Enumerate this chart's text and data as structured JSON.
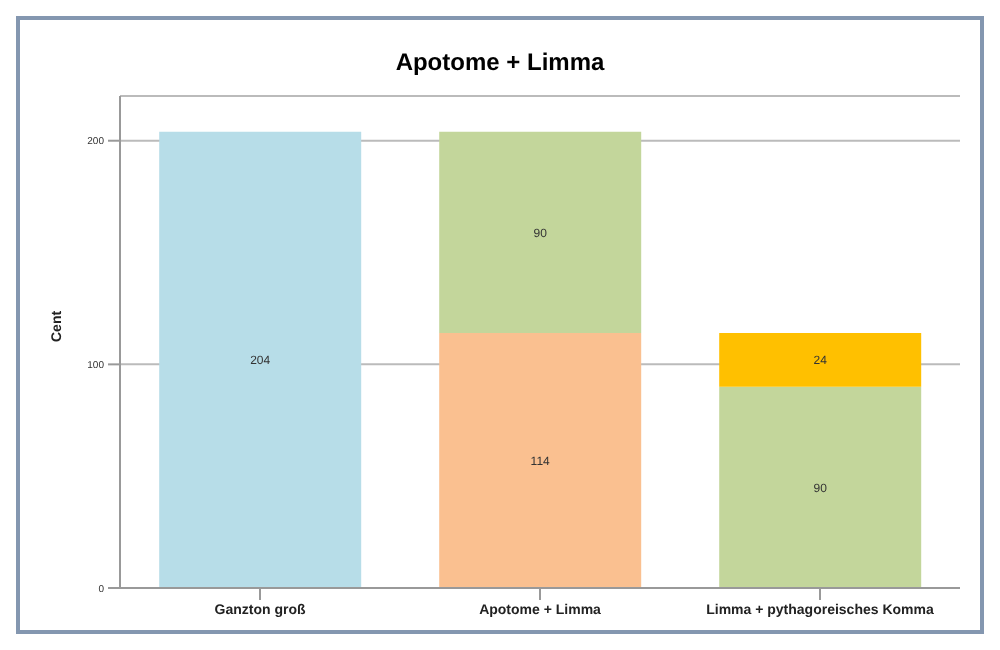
{
  "chart_data": {
    "type": "bar",
    "title": "Apotome + Limma",
    "ylabel": "Cent",
    "categories": [
      "Ganzton groß",
      "Apotome + Limma",
      "Limma + pythagoreisches Komma"
    ],
    "stacked": true,
    "data_labels": true,
    "grid": "y",
    "legend": false,
    "ylim": [
      0,
      220
    ],
    "yticks": [
      0,
      100,
      200
    ],
    "series": [
      {
        "values": [
          204,
          114,
          90
        ],
        "colors": [
          "#b7dde8",
          "#fac090",
          "#c3d69b"
        ]
      },
      {
        "values": [
          null,
          90,
          24
        ],
        "colors": [
          null,
          "#c3d69b",
          "#ffc000"
        ]
      }
    ]
  }
}
